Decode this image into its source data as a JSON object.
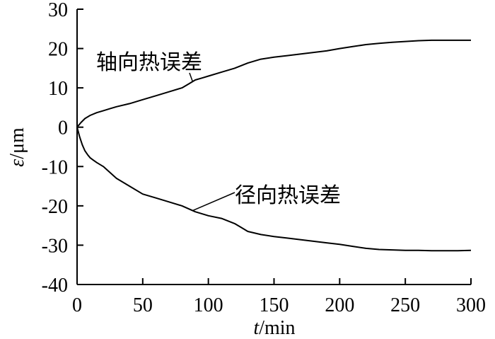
{
  "chart_data": {
    "type": "line",
    "title": "",
    "xlabel": {
      "var": "t",
      "unit": "/min"
    },
    "ylabel": {
      "var": "ε",
      "unit": "/μm"
    },
    "xlim": [
      0,
      300
    ],
    "ylim": [
      -40,
      30
    ],
    "xticks": [
      0,
      50,
      100,
      150,
      200,
      250,
      300
    ],
    "yticks": [
      -40,
      -30,
      -20,
      -10,
      0,
      10,
      20,
      30
    ],
    "grid": false,
    "series": [
      {
        "name": "轴向热误差",
        "x": [
          0,
          3,
          6,
          10,
          15,
          20,
          25,
          30,
          40,
          50,
          60,
          70,
          80,
          85,
          90,
          95,
          100,
          110,
          120,
          130,
          140,
          150,
          160,
          170,
          180,
          190,
          200,
          210,
          220,
          230,
          240,
          250,
          260,
          270,
          280,
          290,
          300
        ],
        "values": [
          0,
          1.2,
          2.2,
          3.0,
          3.7,
          4.2,
          4.7,
          5.2,
          6.0,
          7.0,
          8.0,
          9.0,
          10.0,
          11.0,
          12.0,
          12.5,
          13.0,
          14.0,
          15.0,
          16.3,
          17.3,
          17.8,
          18.2,
          18.6,
          19.0,
          19.4,
          20.0,
          20.5,
          21.0,
          21.3,
          21.6,
          21.8,
          22.0,
          22.1,
          22.1,
          22.1,
          22.1
        ]
      },
      {
        "name": "径向热误差",
        "x": [
          0,
          2,
          4,
          6,
          8,
          10,
          12,
          15,
          20,
          25,
          30,
          40,
          50,
          60,
          70,
          80,
          90,
          100,
          110,
          120,
          125,
          130,
          140,
          150,
          160,
          170,
          180,
          190,
          200,
          210,
          220,
          230,
          240,
          250,
          260,
          270,
          280,
          290,
          300
        ],
        "values": [
          0,
          -2.5,
          -4.5,
          -6.0,
          -7.0,
          -7.8,
          -8.3,
          -9.0,
          -10.0,
          -11.5,
          -13.0,
          -15.0,
          -17.0,
          -18.0,
          -19.0,
          -20.0,
          -21.5,
          -22.5,
          -23.2,
          -24.5,
          -25.5,
          -26.5,
          -27.3,
          -27.8,
          -28.2,
          -28.6,
          -29.0,
          -29.4,
          -29.8,
          -30.3,
          -30.8,
          -31.1,
          -31.2,
          -31.3,
          -31.3,
          -31.4,
          -31.4,
          -31.4,
          -31.3
        ]
      }
    ],
    "annotations": [
      {
        "text": "轴向热误差",
        "series": 0,
        "at_x": 88
      },
      {
        "text": "径向热误差",
        "series": 1,
        "at_x": 88
      }
    ]
  }
}
